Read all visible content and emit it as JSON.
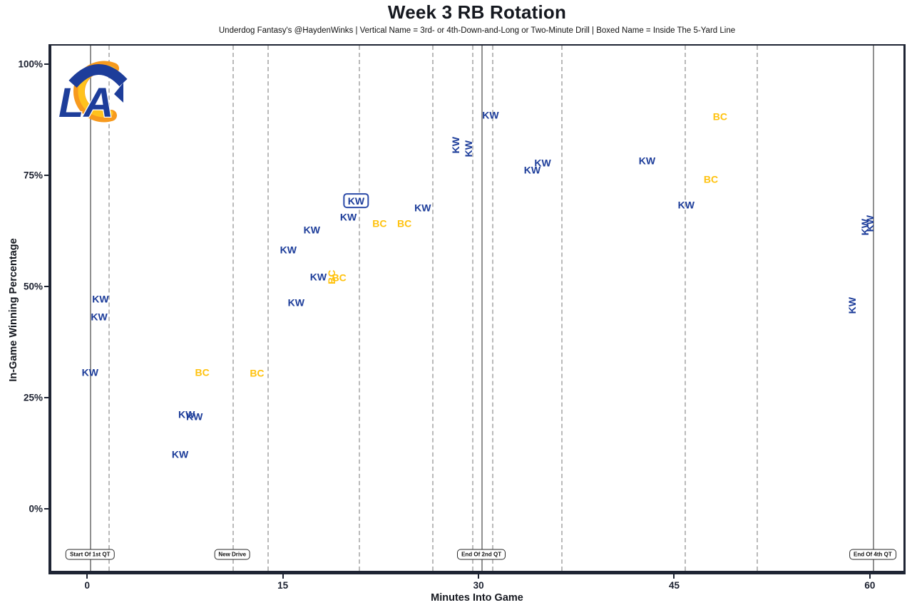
{
  "chart_data": {
    "type": "scatter",
    "title": "Week 3 RB Rotation",
    "subtitle": "Underdog Fantasy's @HaydenWinks | Vertical Name = 3rd- or 4th-Down-and-Long or Two-Minute Drill | Boxed Name = Inside The 5-Yard Line",
    "xlabel": "Minutes Into Game",
    "ylabel": "In-Game Winning Percentage",
    "xlim": [
      -3,
      63
    ],
    "ylim": [
      -15,
      104
    ],
    "x_ticks": [
      0,
      15,
      30,
      45,
      60
    ],
    "y_ticks": [
      {
        "value": 0,
        "label": "0%"
      },
      {
        "value": 25,
        "label": "25%"
      },
      {
        "value": 50,
        "label": "50%"
      },
      {
        "value": 75,
        "label": "75%"
      },
      {
        "value": 100,
        "label": "100%"
      }
    ],
    "grid": {
      "quarter_lines_min": [
        0,
        30,
        60
      ],
      "drive_lines_min": [
        1.4,
        10.9,
        13.6,
        20.6,
        26.2,
        29.3,
        30.8,
        36.1,
        45.6,
        51.1,
        60.0
      ]
    },
    "legend_position": "none",
    "players": [
      {
        "code": "KW",
        "color": "#1d3d9a"
      },
      {
        "code": "BC",
        "color": "#ffc20e"
      }
    ],
    "annotations": [
      {
        "label": "Start Of 1st QT",
        "min": 0
      },
      {
        "label": "New Drive",
        "min": 10.9
      },
      {
        "label": "End Of 2nd QT",
        "min": 30
      },
      {
        "label": "End Of 4th QT",
        "min": 60
      }
    ],
    "points": [
      {
        "player": "KW",
        "min": 0.0,
        "pct": 31.0,
        "style": "normal"
      },
      {
        "player": "KW",
        "min": 0.7,
        "pct": 43.5,
        "style": "normal"
      },
      {
        "player": "KW",
        "min": 0.8,
        "pct": 47.5,
        "style": "normal"
      },
      {
        "player": "KW",
        "min": 6.9,
        "pct": 12.5,
        "style": "normal"
      },
      {
        "player": "KW",
        "min": 7.4,
        "pct": 21.5,
        "style": "normal"
      },
      {
        "player": "KW",
        "min": 8.0,
        "pct": 21.0,
        "style": "normal"
      },
      {
        "player": "BC",
        "min": 8.6,
        "pct": 31.0,
        "style": "normal"
      },
      {
        "player": "BC",
        "min": 12.8,
        "pct": 30.8,
        "style": "normal"
      },
      {
        "player": "KW",
        "min": 15.2,
        "pct": 58.5,
        "style": "normal"
      },
      {
        "player": "KW",
        "min": 15.8,
        "pct": 46.6,
        "style": "normal"
      },
      {
        "player": "KW",
        "min": 17.0,
        "pct": 63.0,
        "style": "normal"
      },
      {
        "player": "KW",
        "min": 17.5,
        "pct": 52.4,
        "style": "normal"
      },
      {
        "player": "BC",
        "min": 18.5,
        "pct": 52.4,
        "style": "vertical"
      },
      {
        "player": "BC",
        "min": 19.1,
        "pct": 52.3,
        "style": "normal"
      },
      {
        "player": "KW",
        "min": 19.8,
        "pct": 65.8,
        "style": "normal"
      },
      {
        "player": "KW",
        "min": 20.4,
        "pct": 69.5,
        "style": "boxed"
      },
      {
        "player": "BC",
        "min": 22.2,
        "pct": 64.4,
        "style": "normal"
      },
      {
        "player": "BC",
        "min": 24.1,
        "pct": 64.4,
        "style": "normal"
      },
      {
        "player": "KW",
        "min": 25.5,
        "pct": 68.0,
        "style": "normal"
      },
      {
        "player": "KW",
        "min": 28.0,
        "pct": 82.0,
        "style": "vertical"
      },
      {
        "player": "KW",
        "min": 29.0,
        "pct": 81.3,
        "style": "vertical"
      },
      {
        "player": "KW",
        "min": 30.7,
        "pct": 88.8,
        "style": "normal"
      },
      {
        "player": "KW",
        "min": 33.9,
        "pct": 76.5,
        "style": "normal"
      },
      {
        "player": "KW",
        "min": 34.7,
        "pct": 78.0,
        "style": "normal"
      },
      {
        "player": "KW",
        "min": 42.7,
        "pct": 78.5,
        "style": "normal"
      },
      {
        "player": "KW",
        "min": 45.7,
        "pct": 68.6,
        "style": "normal"
      },
      {
        "player": "BC",
        "min": 47.6,
        "pct": 74.4,
        "style": "normal"
      },
      {
        "player": "BC",
        "min": 48.3,
        "pct": 88.5,
        "style": "normal"
      },
      {
        "player": "KW",
        "min": 58.4,
        "pct": 46.0,
        "style": "vertical"
      },
      {
        "player": "KW",
        "min": 59.4,
        "pct": 63.6,
        "style": "vertical"
      },
      {
        "player": "KW",
        "min": 59.8,
        "pct": 64.5,
        "style": "vertical"
      }
    ],
    "branding": {
      "team": "LA",
      "logo_colors": {
        "blue": "#1d3d9a",
        "gold": "#ffb300",
        "gold_dark": "#f78d1e"
      }
    }
  }
}
